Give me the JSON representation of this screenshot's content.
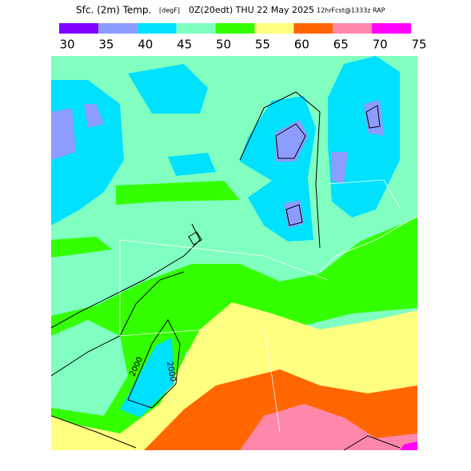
{
  "header": {
    "title": "Sfc. (2m) Temp.",
    "units": "[degF]",
    "valid": "0Z(20edt) THU 22 May 2025",
    "forecast": "12hrFcst@1333z RAP"
  },
  "legend": {
    "bins": [
      30,
      35,
      40,
      45,
      50,
      55,
      60,
      65,
      70,
      75
    ],
    "colors": [
      "#8000ff",
      "#8c9cff",
      "#00e0ff",
      "#80ffc0",
      "#33ff00",
      "#ffff80",
      "#ff6600",
      "#ff88aa",
      "#ff00ff"
    ]
  },
  "map": {
    "contour_labels": [
      "2000",
      "2000"
    ]
  }
}
